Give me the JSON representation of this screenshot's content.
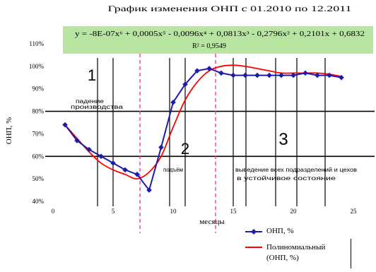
{
  "chart_data": {
    "type": "line",
    "title": "График изменения ОНП с 01.2010 по 12.2011",
    "xlabel": "месяцы",
    "ylabel": "ОНП, %",
    "xlim": [
      0,
      25
    ],
    "ylim": [
      40,
      110
    ],
    "xticks": [
      0,
      5,
      10,
      15,
      20,
      25
    ],
    "xtick_labels": [
      "0",
      "5",
      "10",
      "15",
      "20",
      "25"
    ],
    "yticks": [
      40,
      50,
      60,
      70,
      80,
      90,
      100,
      110
    ],
    "ytick_labels": [
      "40%",
      "50%",
      "60%",
      "70%",
      "80%",
      "90%",
      "100%",
      "110%"
    ],
    "grid": false,
    "legend_position": "bottom-right",
    "x": [
      1,
      2,
      3,
      4,
      5,
      6,
      7,
      8,
      9,
      10,
      11,
      12,
      13,
      14,
      15,
      16,
      17,
      18,
      19,
      20,
      21,
      22,
      23,
      24
    ],
    "series": [
      {
        "name": "ОНП, %",
        "color": "#1c1ca8",
        "marker": "diamond",
        "values": [
          74,
          67,
          63,
          60,
          57,
          54,
          52,
          45,
          64,
          84,
          92,
          98,
          99,
          97,
          96,
          96,
          96,
          96,
          96,
          96,
          97,
          96,
          96,
          95
        ]
      },
      {
        "name": "Полиномиальный (ОНП, %)",
        "color": "#ff0000",
        "marker": "none",
        "values": [
          74,
          68,
          62,
          57,
          54,
          52,
          50,
          53,
          60,
          73,
          85,
          93,
          98,
          100,
          100.5,
          100,
          99,
          98,
          97,
          97,
          97,
          97,
          96.5,
          95.5
        ]
      }
    ],
    "trendline": {
      "equation": "y = -8E-07x⁶ + 0,0005x⁵ - 0,0096x⁴ + 0,0813x³ - 0,2796x² + 0,2101x + 0,6832",
      "r_squared": "R² = 0,9549"
    },
    "annotations": [
      {
        "label": "1",
        "text_lines": [
          "падение",
          "производства"
        ]
      },
      {
        "label": "2",
        "text_lines": [
          "подъём"
        ]
      },
      {
        "label": "3",
        "text_lines": [
          "выведение всех подразделений и цехов",
          "в устойчивое состояние"
        ]
      }
    ]
  },
  "colors": {
    "annotation": "#ff33cc",
    "zone_divider": "#ff3399",
    "equation_box": "#b7e4a1",
    "reference_line": "#000000"
  }
}
